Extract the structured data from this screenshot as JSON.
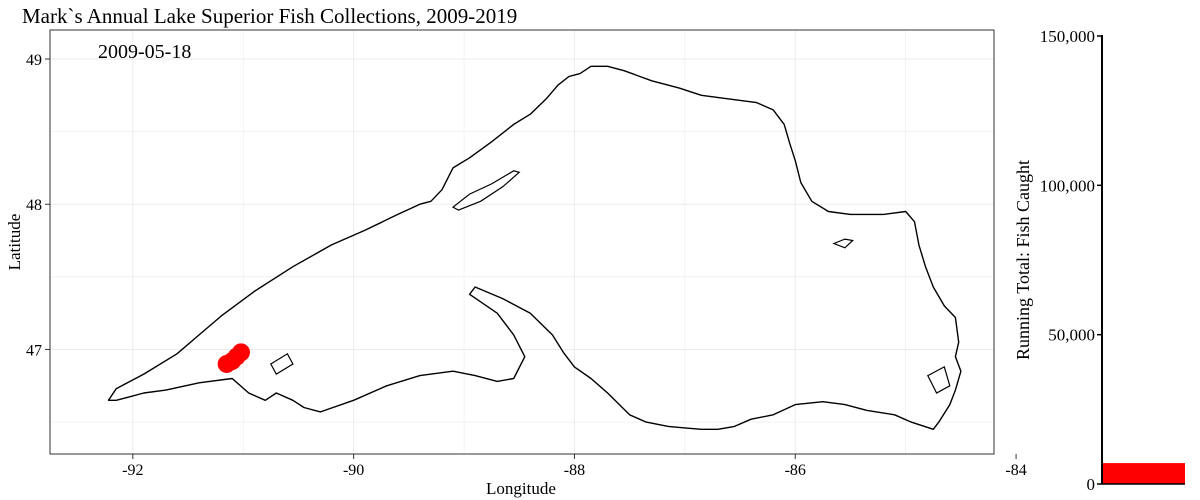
{
  "title": "Mark`s Annual Lake Superior Fish Collections, 2009-2019",
  "date_label": "2009-05-18",
  "chart_data": [
    {
      "type": "map",
      "title": "Mark`s Annual Lake Superior Fish Collections, 2009-2019",
      "xlabel": "Longitude",
      "ylabel": "Latitude",
      "xlim": [
        -92.75,
        -84.2
      ],
      "ylim": [
        46.28,
        49.2
      ],
      "x_ticks": [
        -92,
        -90,
        -88,
        -86,
        -84
      ],
      "x_tick_labels": [
        "-92",
        "-90",
        "-88",
        "-86",
        "-84"
      ],
      "y_ticks": [
        47,
        48,
        49
      ],
      "y_tick_labels": [
        "47",
        "48",
        "49"
      ],
      "grid": true,
      "colors": {
        "outline": "#000000",
        "points": "#ff0000",
        "grid": "#ebebeb"
      },
      "points": [
        {
          "lon": -91.02,
          "lat": 46.98
        },
        {
          "lon": -91.06,
          "lat": 46.95
        },
        {
          "lon": -91.1,
          "lat": 46.92
        },
        {
          "lon": -91.15,
          "lat": 46.9
        }
      ],
      "shoreline": [
        [
          -92.15,
          46.65
        ],
        [
          -92.22,
          46.65
        ],
        [
          -92.15,
          46.73
        ],
        [
          -91.9,
          46.83
        ],
        [
          -91.6,
          46.97
        ],
        [
          -91.4,
          47.1
        ],
        [
          -91.2,
          47.23
        ],
        [
          -90.9,
          47.4
        ],
        [
          -90.55,
          47.57
        ],
        [
          -90.2,
          47.72
        ],
        [
          -89.9,
          47.82
        ],
        [
          -89.6,
          47.93
        ],
        [
          -89.4,
          48.0
        ],
        [
          -89.3,
          48.02
        ],
        [
          -89.2,
          48.1
        ],
        [
          -89.1,
          48.25
        ],
        [
          -88.95,
          48.32
        ],
        [
          -88.75,
          48.43
        ],
        [
          -88.55,
          48.55
        ],
        [
          -88.4,
          48.62
        ],
        [
          -88.25,
          48.73
        ],
        [
          -88.15,
          48.82
        ],
        [
          -88.05,
          48.88
        ],
        [
          -87.95,
          48.9
        ],
        [
          -87.85,
          48.95
        ],
        [
          -87.7,
          48.95
        ],
        [
          -87.55,
          48.92
        ],
        [
          -87.3,
          48.85
        ],
        [
          -87.05,
          48.8
        ],
        [
          -86.85,
          48.75
        ],
        [
          -86.55,
          48.72
        ],
        [
          -86.35,
          48.7
        ],
        [
          -86.2,
          48.65
        ],
        [
          -86.1,
          48.55
        ],
        [
          -86.05,
          48.42
        ],
        [
          -86.0,
          48.3
        ],
        [
          -85.95,
          48.15
        ],
        [
          -85.85,
          48.02
        ],
        [
          -85.7,
          47.95
        ],
        [
          -85.5,
          47.93
        ],
        [
          -85.2,
          47.93
        ],
        [
          -85.0,
          47.95
        ],
        [
          -84.92,
          47.88
        ],
        [
          -84.88,
          47.72
        ],
        [
          -84.82,
          47.57
        ],
        [
          -84.75,
          47.43
        ],
        [
          -84.65,
          47.3
        ],
        [
          -84.55,
          47.22
        ],
        [
          -84.52,
          47.05
        ],
        [
          -84.55,
          46.95
        ],
        [
          -84.5,
          46.85
        ],
        [
          -84.55,
          46.72
        ],
        [
          -84.6,
          46.62
        ],
        [
          -84.7,
          46.5
        ],
        [
          -84.75,
          46.45
        ],
        [
          -84.95,
          46.5
        ],
        [
          -85.1,
          46.55
        ],
        [
          -85.35,
          46.58
        ],
        [
          -85.55,
          46.62
        ],
        [
          -85.75,
          46.64
        ],
        [
          -86.0,
          46.62
        ],
        [
          -86.2,
          46.55
        ],
        [
          -86.4,
          46.52
        ],
        [
          -86.55,
          46.47
        ],
        [
          -86.7,
          46.45
        ],
        [
          -86.85,
          46.45
        ],
        [
          -87.0,
          46.46
        ],
        [
          -87.15,
          46.47
        ],
        [
          -87.35,
          46.5
        ],
        [
          -87.5,
          46.55
        ],
        [
          -87.7,
          46.7
        ],
        [
          -87.85,
          46.8
        ],
        [
          -88.0,
          46.88
        ],
        [
          -88.1,
          46.98
        ],
        [
          -88.2,
          47.1
        ],
        [
          -88.4,
          47.25
        ],
        [
          -88.65,
          47.35
        ],
        [
          -88.9,
          47.43
        ],
        [
          -88.95,
          47.38
        ],
        [
          -88.7,
          47.25
        ],
        [
          -88.55,
          47.1
        ],
        [
          -88.45,
          46.95
        ],
        [
          -88.55,
          46.8
        ],
        [
          -88.7,
          46.78
        ],
        [
          -88.9,
          46.82
        ],
        [
          -89.1,
          46.85
        ],
        [
          -89.4,
          46.82
        ],
        [
          -89.7,
          46.75
        ],
        [
          -90.0,
          46.65
        ],
        [
          -90.3,
          46.57
        ],
        [
          -90.45,
          46.6
        ],
        [
          -90.55,
          46.65
        ],
        [
          -90.7,
          46.7
        ],
        [
          -90.8,
          46.65
        ],
        [
          -90.95,
          46.7
        ],
        [
          -91.1,
          46.8
        ],
        [
          -91.4,
          46.77
        ],
        [
          -91.7,
          46.72
        ],
        [
          -91.9,
          46.7
        ],
        [
          -92.05,
          46.67
        ],
        [
          -92.15,
          46.65
        ]
      ],
      "islands": [
        [
          [
            -89.05,
            48.01
          ],
          [
            -88.95,
            48.07
          ],
          [
            -88.75,
            48.14
          ],
          [
            -88.55,
            48.23
          ],
          [
            -88.5,
            48.22
          ],
          [
            -88.65,
            48.12
          ],
          [
            -88.85,
            48.02
          ],
          [
            -89.05,
            47.96
          ],
          [
            -89.1,
            47.98
          ],
          [
            -89.05,
            48.01
          ]
        ],
        [
          [
            -85.65,
            47.73
          ],
          [
            -85.55,
            47.76
          ],
          [
            -85.48,
            47.75
          ],
          [
            -85.55,
            47.7
          ],
          [
            -85.65,
            47.73
          ]
        ],
        [
          [
            -90.75,
            46.9
          ],
          [
            -90.6,
            46.97
          ],
          [
            -90.55,
            46.9
          ],
          [
            -90.7,
            46.83
          ],
          [
            -90.75,
            46.9
          ]
        ],
        [
          [
            -84.8,
            46.82
          ],
          [
            -84.65,
            46.88
          ],
          [
            -84.6,
            46.75
          ],
          [
            -84.72,
            46.7
          ],
          [
            -84.8,
            46.82
          ]
        ]
      ]
    },
    {
      "type": "bar",
      "ylabel": "Running Total: Fish Caught",
      "ylim": [
        0,
        150000
      ],
      "y_ticks": [
        0,
        50000,
        100000,
        150000
      ],
      "y_tick_labels": [
        "0",
        "50,000",
        "100,000",
        "150,000"
      ],
      "values": [
        7000
      ],
      "colors": {
        "bar": "#ff0000"
      }
    }
  ]
}
